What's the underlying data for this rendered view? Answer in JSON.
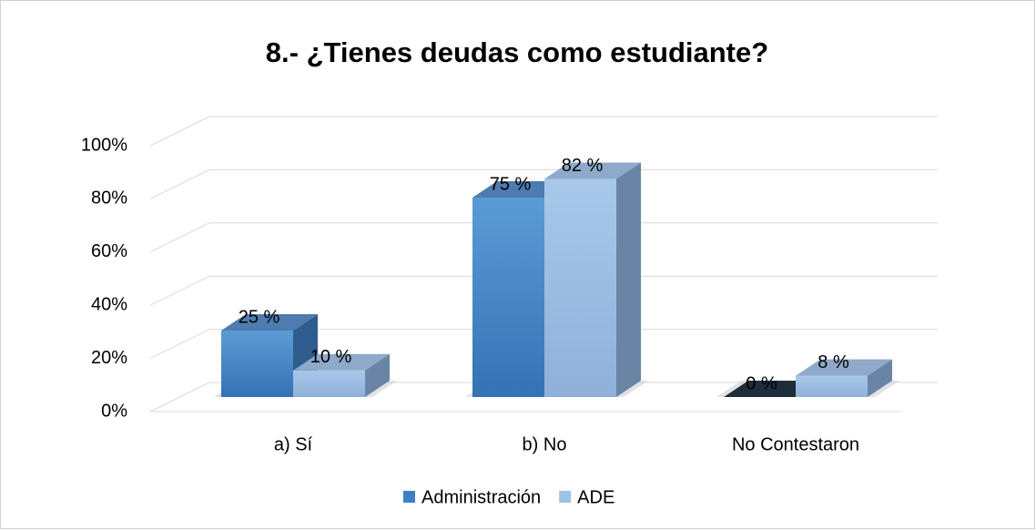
{
  "chart_data": {
    "type": "bar3d",
    "title": "8.- ¿Tienes deudas como estudiante?",
    "categories": [
      "a) Sí",
      "b) No",
      "No Contestaron"
    ],
    "series": [
      {
        "name": "Administración",
        "color": "#3f80c4",
        "values": [
          25,
          75,
          0
        ],
        "value_labels": [
          "25 %",
          "75 %",
          "0 %"
        ]
      },
      {
        "name": "ADE",
        "color": "#9dc3e6",
        "values": [
          10,
          82,
          8
        ],
        "value_labels": [
          "10 %",
          "82 %",
          "8 %"
        ]
      }
    ],
    "ylim": [
      0,
      100
    ],
    "yticks": [
      {
        "value": 0,
        "label": "0%"
      },
      {
        "value": 20,
        "label": "20%"
      },
      {
        "value": 40,
        "label": "40%"
      },
      {
        "value": 60,
        "label": "60%"
      },
      {
        "value": 80,
        "label": "80%"
      },
      {
        "value": 100,
        "label": "100%"
      }
    ],
    "grid": true,
    "legend": "bottom"
  }
}
